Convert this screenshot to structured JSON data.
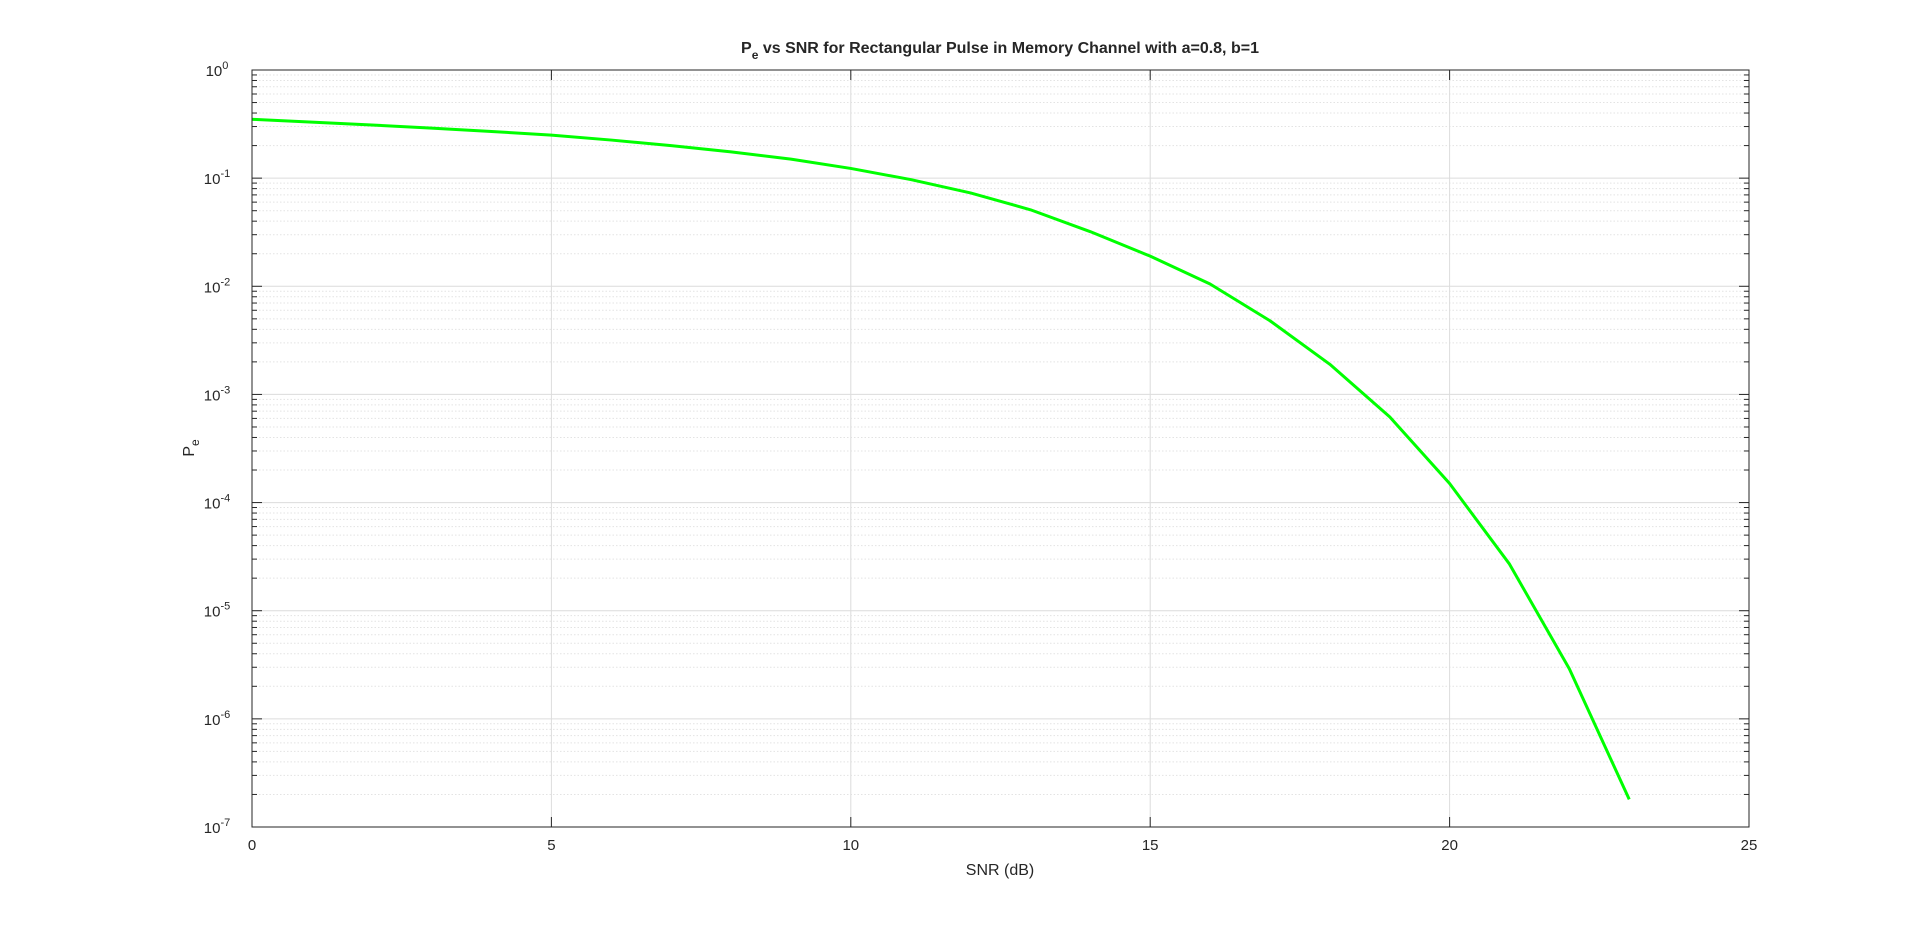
{
  "chart_data": {
    "type": "line",
    "title": {
      "prefix": "P",
      "subscript": "e",
      "rest": " vs SNR for Rectangular Pulse in Memory Channel with a=0.8, b=1"
    },
    "xlabel": "SNR (dB)",
    "ylabel": {
      "main": "P",
      "subscript": "e"
    },
    "xlim": [
      0,
      25
    ],
    "ylim": [
      1e-07,
      1
    ],
    "yscale": "log",
    "grid": true,
    "minor_grid": true,
    "x_ticks": [
      {
        "value": 0,
        "label": "0"
      },
      {
        "value": 5,
        "label": "5"
      },
      {
        "value": 10,
        "label": "10"
      },
      {
        "value": 15,
        "label": "15"
      },
      {
        "value": 20,
        "label": "20"
      },
      {
        "value": 25,
        "label": "25"
      }
    ],
    "y_ticks": [
      {
        "exp": 0,
        "base": "10",
        "sup": "0"
      },
      {
        "exp": -1,
        "base": "10",
        "sup": "-1"
      },
      {
        "exp": -2,
        "base": "10",
        "sup": "-2"
      },
      {
        "exp": -3,
        "base": "10",
        "sup": "-3"
      },
      {
        "exp": -4,
        "base": "10",
        "sup": "-4"
      },
      {
        "exp": -5,
        "base": "10",
        "sup": "-5"
      },
      {
        "exp": -6,
        "base": "10",
        "sup": "-6"
      },
      {
        "exp": -7,
        "base": "10",
        "sup": "-7"
      }
    ],
    "series": [
      {
        "color": "#00ff00",
        "x": [
          0,
          1,
          2,
          3,
          4,
          5,
          6,
          7,
          8,
          9,
          10,
          11,
          12,
          13,
          14,
          15,
          16,
          17,
          18,
          19,
          20,
          21,
          22,
          23
        ],
        "y": [
          0.35,
          0.33,
          0.31,
          0.29,
          0.27,
          0.25,
          0.225,
          0.2,
          0.175,
          0.15,
          0.123,
          0.097,
          0.073,
          0.051,
          0.032,
          0.019,
          0.0105,
          0.0048,
          0.0019,
          0.00062,
          0.00015,
          2.7e-05,
          2.9e-06,
          1.8e-07
        ]
      }
    ]
  }
}
